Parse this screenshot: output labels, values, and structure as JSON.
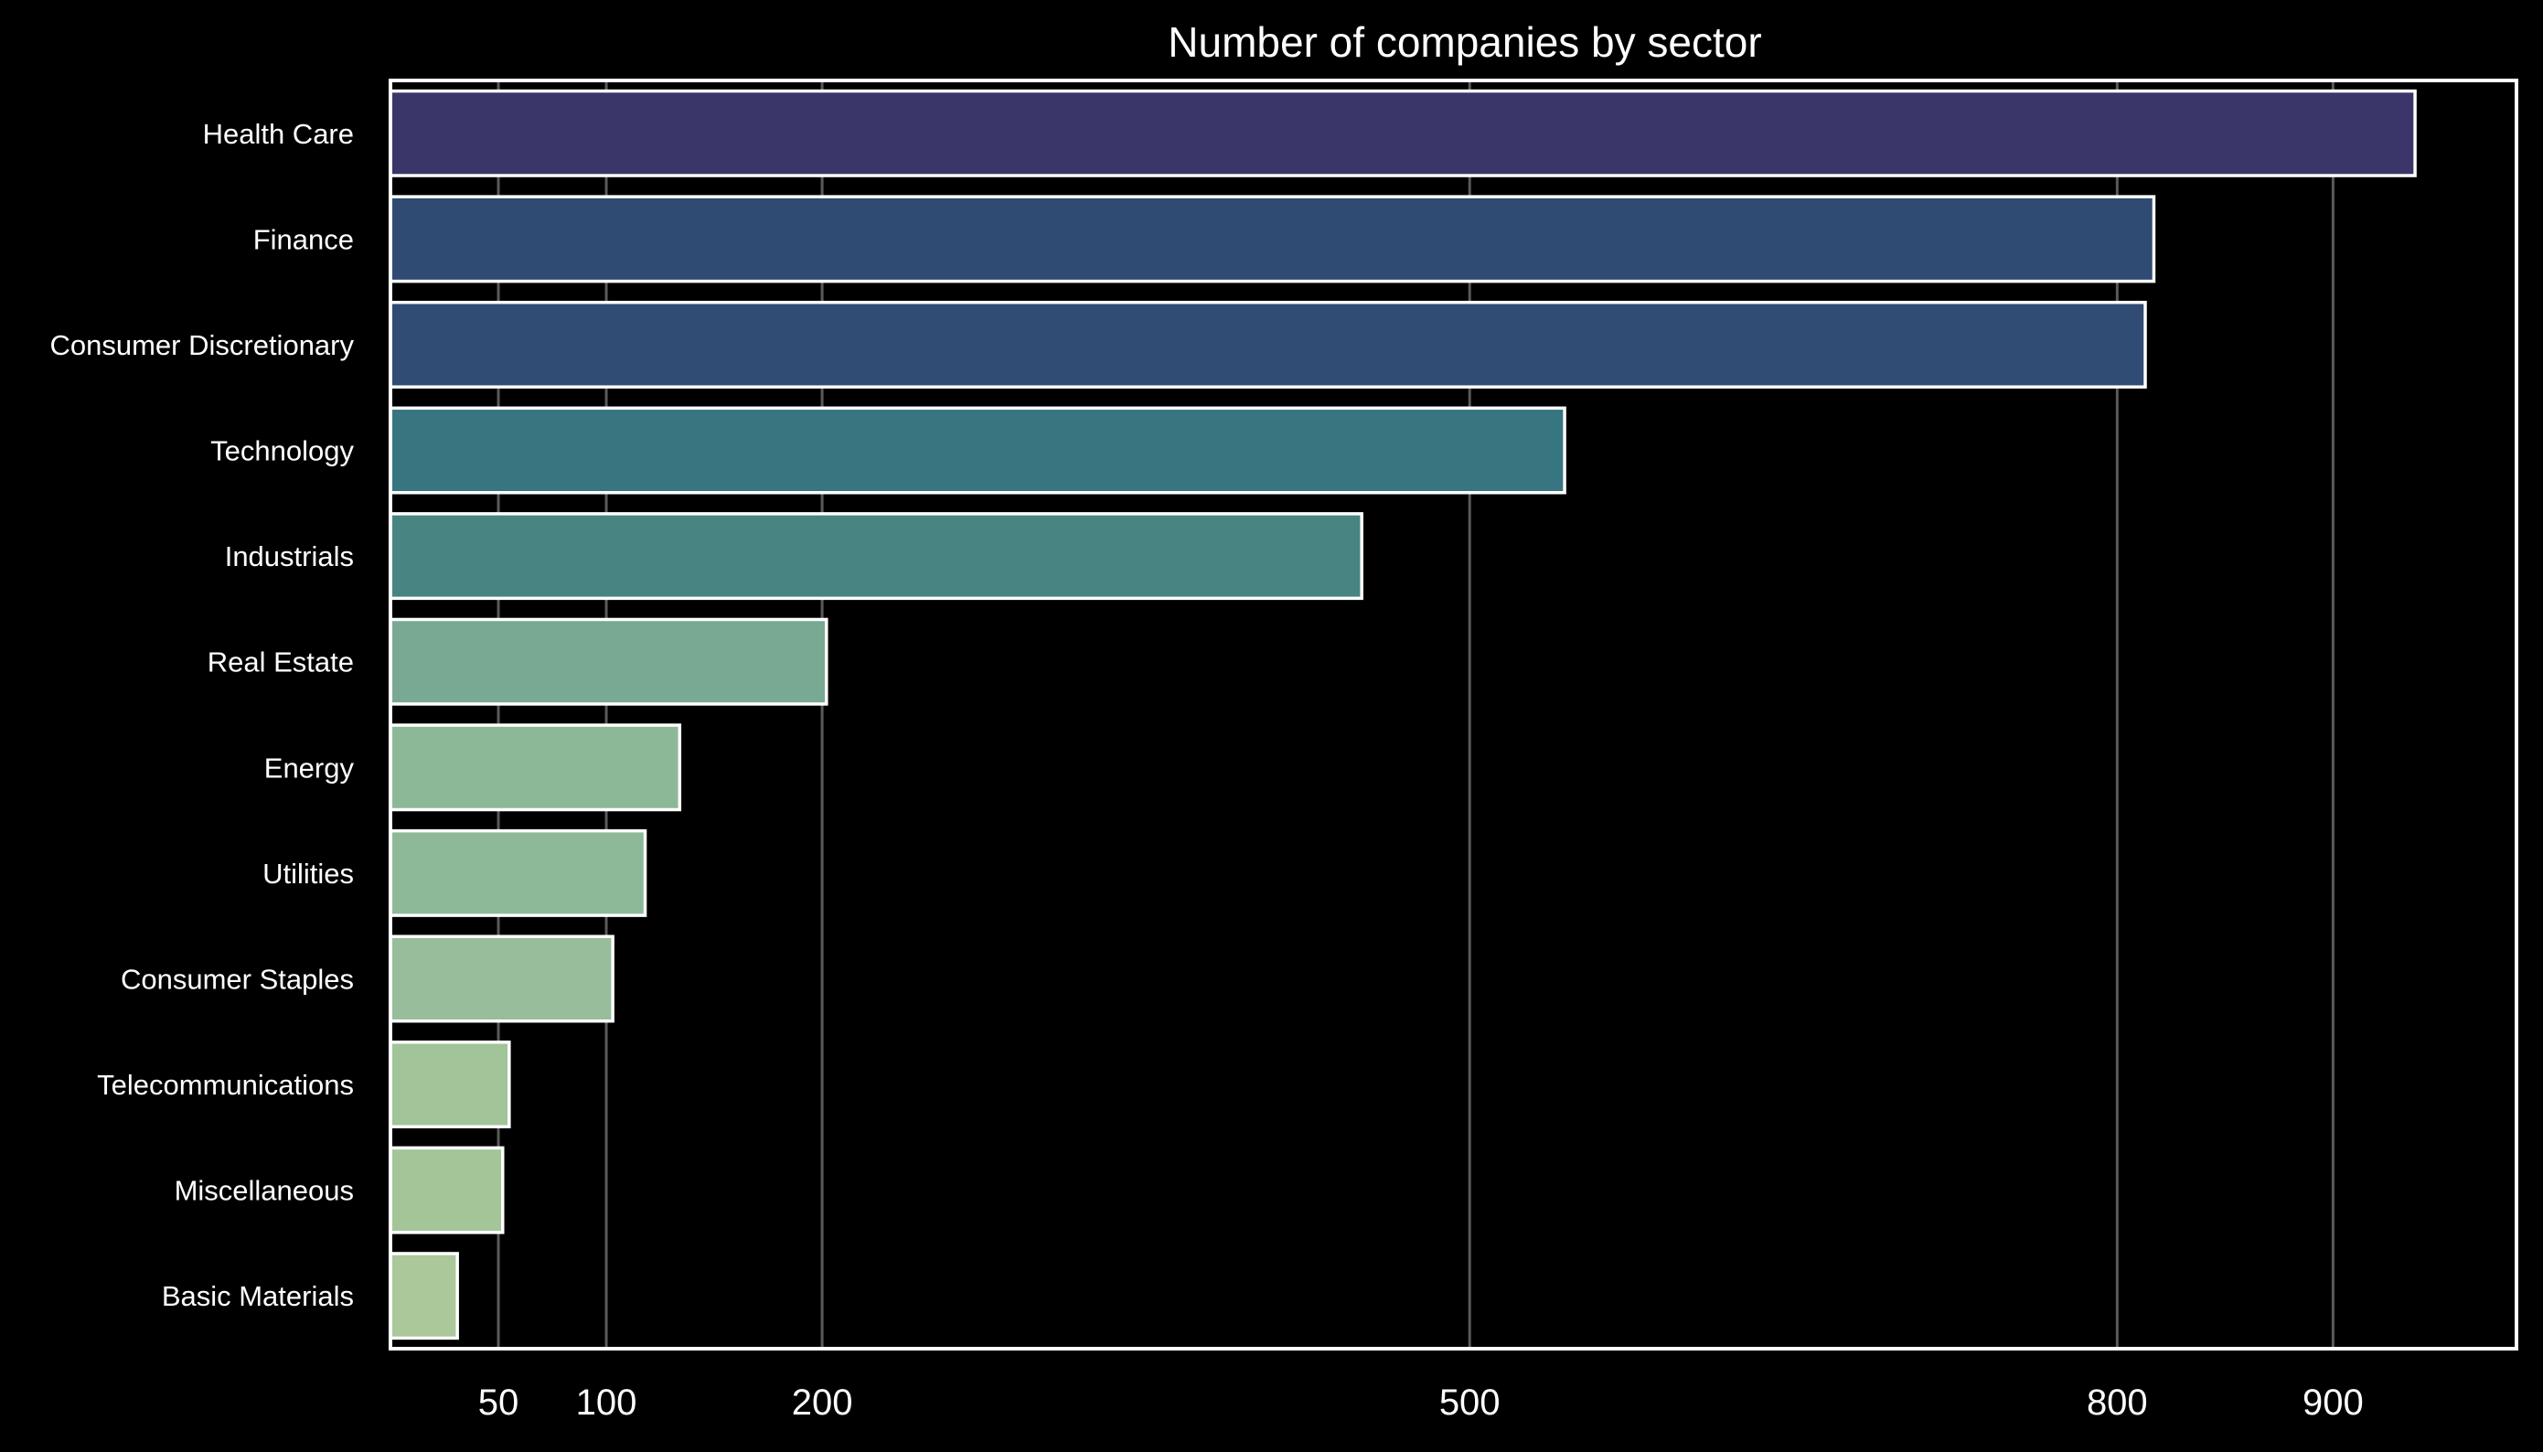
{
  "chart_data": {
    "type": "bar",
    "orientation": "horizontal",
    "title": "Number of companies by sector",
    "xlabel": "",
    "ylabel": "",
    "categories": [
      "Health Care",
      "Finance",
      "Consumer Discretionary",
      "Technology",
      "Industrials",
      "Real Estate",
      "Energy",
      "Utilities",
      "Consumer Staples",
      "Telecommunications",
      "Miscellaneous",
      "Basic Materials"
    ],
    "values": [
      938,
      817,
      813,
      544,
      450,
      202,
      134,
      118,
      103,
      55,
      52,
      31
    ],
    "colors": [
      "#3a3669",
      "#2f4b73",
      "#304b74",
      "#377580",
      "#478482",
      "#7aa993",
      "#8db897",
      "#8eb998",
      "#97bd9a",
      "#a1c498",
      "#a3c598",
      "#aac89a"
    ],
    "xticks": [
      50,
      100,
      200,
      500,
      800,
      900
    ],
    "xlim": [
      0,
      985
    ],
    "grid": "x"
  }
}
